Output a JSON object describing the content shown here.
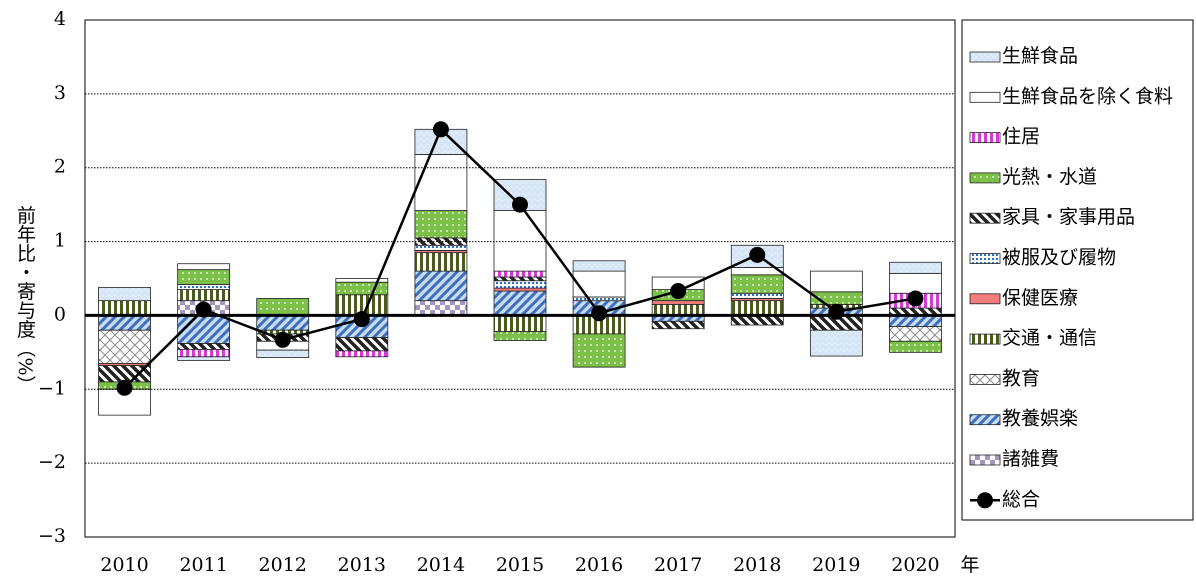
{
  "chart_data": {
    "type": "bar",
    "stacked": true,
    "y_label": "前年比・寄与度（%）",
    "x_label": "年",
    "categories": [
      "2010",
      "2011",
      "2012",
      "2013",
      "2014",
      "2015",
      "2016",
      "2017",
      "2018",
      "2019",
      "2020"
    ],
    "ylim": [
      -3,
      4
    ],
    "yticks": [
      {
        "value": -3,
        "label": "−3"
      },
      {
        "value": -2,
        "label": "−2"
      },
      {
        "value": -1,
        "label": "−1"
      },
      0,
      1,
      2,
      3,
      4
    ],
    "grid": true,
    "legend": "right",
    "series": [
      {
        "name": "生鮮食品",
        "color": "#d6e6f6",
        "pattern": "speckle",
        "values": [
          0.18,
          -0.05,
          -0.1,
          0,
          0.34,
          0.42,
          0.14,
          0,
          0.3,
          -0.35,
          0.15
        ]
      },
      {
        "name": "生鮮食品を除く食料",
        "color": "#ffffff",
        "pattern": "solid",
        "values": [
          -0.35,
          0.08,
          -0.12,
          0.05,
          0.76,
          0.82,
          0.35,
          0.17,
          0.1,
          0.28,
          0.27
        ]
      },
      {
        "name": "住居",
        "color": "#d63ad6",
        "pattern": "vstripe",
        "values": [
          0,
          -0.1,
          0,
          -0.08,
          0,
          0.08,
          0,
          0,
          0,
          0,
          0.2
        ]
      },
      {
        "name": "光熱・水道",
        "color": "#7cc04a",
        "pattern": "dots",
        "values": [
          -0.1,
          0.2,
          0.23,
          0.17,
          0.37,
          -0.12,
          -0.45,
          0.15,
          0.25,
          0.17,
          -0.15
        ]
      },
      {
        "name": "家具・家事用品",
        "color": "#222222",
        "pattern": "diag",
        "values": [
          -0.22,
          -0.08,
          -0.1,
          -0.18,
          0.1,
          0.05,
          0,
          -0.1,
          -0.13,
          -0.2,
          0.1
        ]
      },
      {
        "name": "被服及び履物",
        "color": "#2a6fd6",
        "pattern": "bluedots",
        "values": [
          0,
          0.07,
          0,
          0,
          0.07,
          0.1,
          0.05,
          0,
          0.07,
          0,
          0
        ]
      },
      {
        "name": "保健医療",
        "color": "#f47c7c",
        "pattern": "solid",
        "values": [
          -0.03,
          0,
          0,
          0,
          0.03,
          0.04,
          0,
          0.05,
          0.03,
          0,
          0
        ]
      },
      {
        "name": "交通・通信",
        "color": "#4b5a1e",
        "pattern": "vstripe",
        "values": [
          0.2,
          0.15,
          -0.05,
          0.28,
          0.25,
          -0.22,
          -0.25,
          0.15,
          0.2,
          0.05,
          0
        ]
      },
      {
        "name": "教育",
        "color": "#8c8c8c",
        "pattern": "cross",
        "values": [
          -0.45,
          0,
          0,
          0,
          0,
          0,
          0,
          0,
          0,
          0,
          -0.2
        ]
      },
      {
        "name": "教養娯楽",
        "color": "#3f6fbf",
        "pattern": "bluediag",
        "values": [
          -0.2,
          -0.38,
          -0.2,
          -0.3,
          0.4,
          0.33,
          0.2,
          -0.08,
          0,
          0.1,
          -0.15
        ]
      },
      {
        "name": "諸雑費",
        "color": "#a596bf",
        "pattern": "checker",
        "values": [
          0,
          0.2,
          0,
          0,
          0.2,
          0,
          0,
          0,
          0,
          0,
          0
        ]
      }
    ],
    "total": {
      "name": "総合",
      "color": "#000000",
      "values": [
        -0.98,
        0.08,
        -0.33,
        -0.05,
        2.52,
        1.5,
        0.03,
        0.33,
        0.82,
        0.05,
        0.23
      ]
    }
  }
}
